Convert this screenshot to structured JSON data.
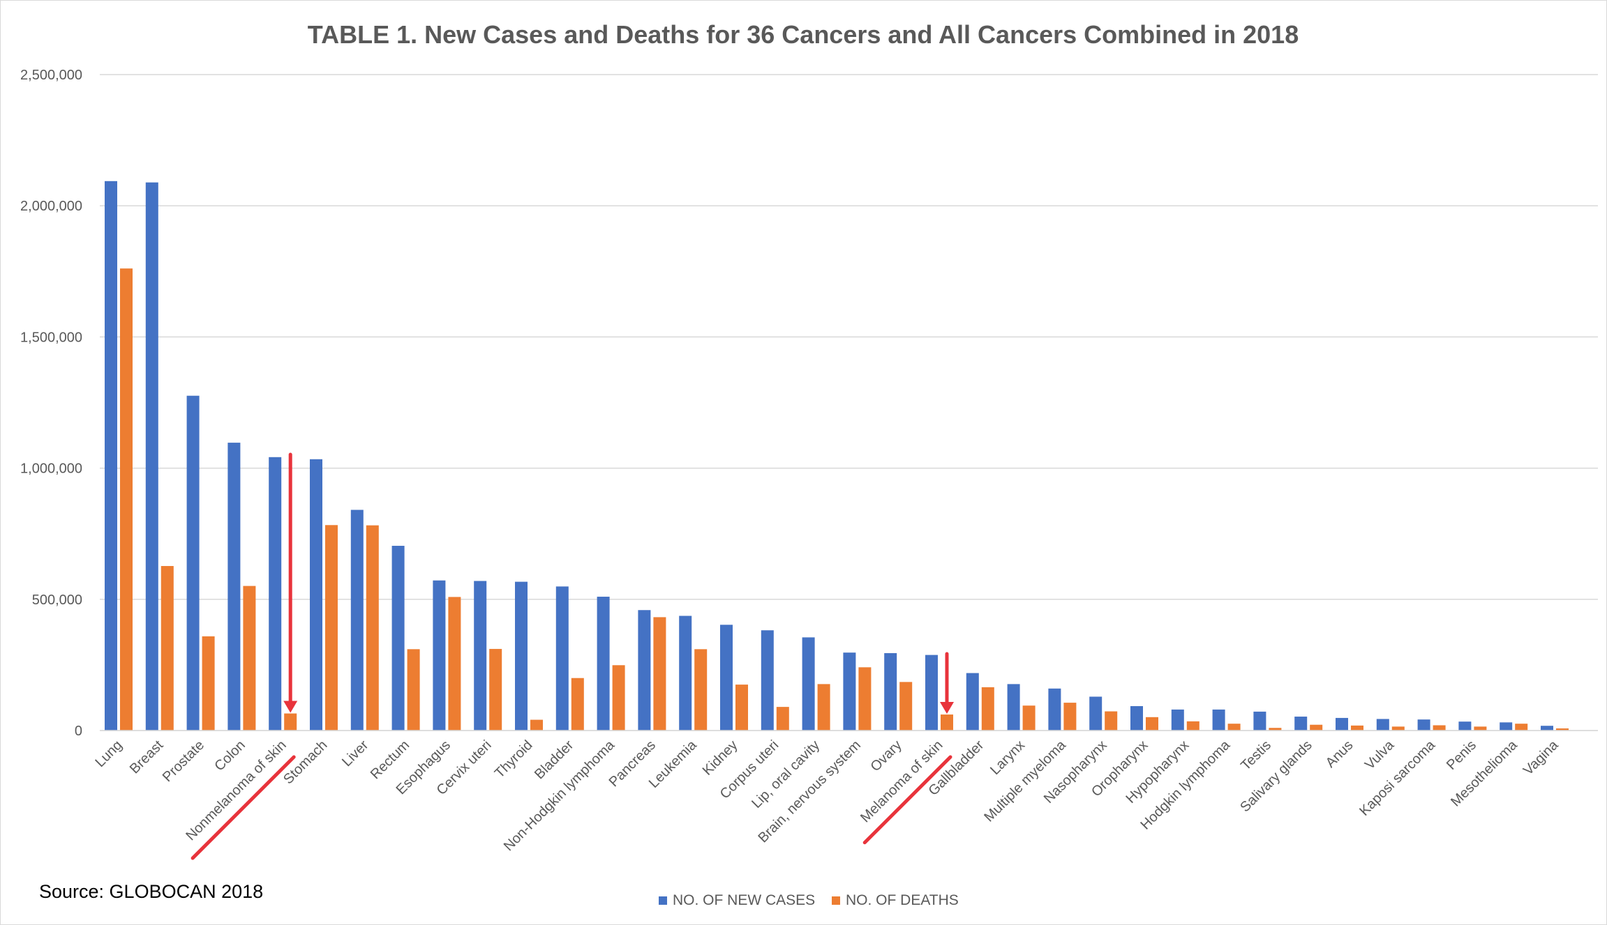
{
  "chart_data": {
    "type": "bar",
    "title": "TABLE 1. New Cases and Deaths for 36 Cancers and All Cancers Combined in 2018",
    "xlabel": "",
    "ylabel": "",
    "ylim": [
      0,
      2500000
    ],
    "yticks": [
      0,
      500000,
      1000000,
      1500000,
      2000000,
      2500000
    ],
    "ytick_labels": [
      "0",
      "500,000",
      "1,000,000",
      "1,500,000",
      "2,000,000",
      "2,500,000"
    ],
    "grid": true,
    "legend_position": "bottom",
    "categories": [
      "Lung",
      "Breast",
      "Prostate",
      "Colon",
      "Nonmelanoma of skin",
      "Stomach",
      "Liver",
      "Rectum",
      "Esophagus",
      "Cervix uteri",
      "Thyroid",
      "Bladder",
      "Non-Hodgkin lymphoma",
      "Pancreas",
      "Leukemia",
      "Kidney",
      "Corpus uteri",
      "Lip, oral cavity",
      "Brain, nervous system",
      "Ovary",
      "Melanoma of skin",
      "Gallbladder",
      "Larynx",
      "Multiple myeloma",
      "Nasopharynx",
      "Oropharynx",
      "Hypopharynx",
      "Hodgkin lymphoma",
      "Testis",
      "Salivary glands",
      "Anus",
      "Vulva",
      "Kaposi sarcoma",
      "Penis",
      "Mesothelioma",
      "Vagina"
    ],
    "series": [
      {
        "name": "NO. OF NEW CASES",
        "color": "#4472C4",
        "values": [
          2094000,
          2089000,
          1276000,
          1097000,
          1042000,
          1034000,
          841000,
          704000,
          572000,
          570000,
          567000,
          549000,
          510000,
          459000,
          437000,
          403000,
          382000,
          355000,
          297000,
          295000,
          288000,
          219000,
          177000,
          160000,
          129000,
          93000,
          80000,
          80000,
          72000,
          53000,
          48000,
          44000,
          42000,
          34000,
          31000,
          18000
        ]
      },
      {
        "name": "NO. OF DEATHS",
        "color": "#ED7D31",
        "values": [
          1761000,
          627000,
          359000,
          551000,
          65000,
          783000,
          782000,
          310000,
          509000,
          311000,
          41000,
          200000,
          249000,
          432000,
          310000,
          175000,
          90000,
          177000,
          241000,
          185000,
          61000,
          165000,
          95000,
          106000,
          73000,
          51000,
          35000,
          26000,
          10000,
          22000,
          19000,
          15000,
          20000,
          15000,
          26000,
          8000
        ]
      }
    ],
    "annotations": {
      "highlighted_categories": [
        "Nonmelanoma of skin",
        "Melanoma of skin"
      ],
      "marker_color": "#E8333B"
    }
  },
  "source_note": "Source: GLOBOCAN 2018"
}
